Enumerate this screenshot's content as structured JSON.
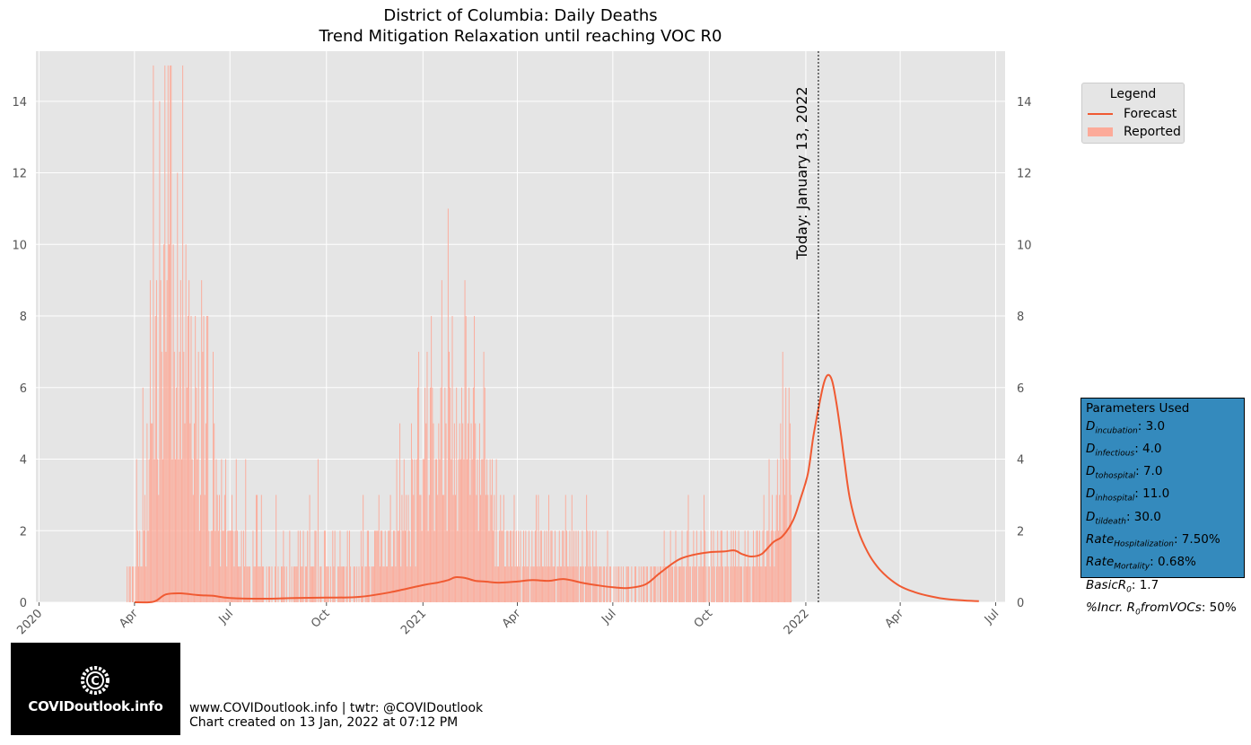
{
  "header": {
    "title": "District of Columbia: Daily Deaths",
    "subtitle": "Trend Mitigation Relaxation until reaching VOC R0"
  },
  "today_label": "Today: January 13, 2022",
  "legend": {
    "title": "Legend",
    "forecast_label": "Forecast",
    "reported_label": "Reported"
  },
  "parameters": {
    "title": "Parameters Used",
    "items": [
      {
        "name": "D",
        "sub": "incubation",
        "value": "3.0"
      },
      {
        "name": "D",
        "sub": "infectious",
        "value": "4.0"
      },
      {
        "name": "D",
        "sub": "tohospital",
        "value": "7.0"
      },
      {
        "name": "D",
        "sub": "inhospital",
        "value": "11.0"
      },
      {
        "name": "D",
        "sub": "tildeath",
        "value": "30.0"
      },
      {
        "name": "Rate",
        "sub": "Hospitalization",
        "value": "7.50%"
      },
      {
        "name": "Rate",
        "sub": "Mortality",
        "value": "0.68%"
      },
      {
        "name": "BasicR",
        "sub": "0",
        "value": "1.7"
      },
      {
        "name": "%Incr. R",
        "sub": "0",
        "name2": "fromVOCs",
        "value": "50%"
      }
    ]
  },
  "logo": {
    "text": "COVIDoutlook.info"
  },
  "footer": {
    "line1": "www.COVIDoutlook.info | twtr: @COVIDoutlook",
    "line2": "Chart created on 13 Jan, 2022 at 07:12 PM"
  },
  "colors": {
    "plot_bg": "#e5e5e5",
    "forecast": "#f05a32",
    "reported": "#fcaa99",
    "params_bg": "#348abd"
  },
  "chart_data": {
    "type": "bar",
    "x_axis": {
      "start": "2019-12-29",
      "end": "2022-07-10",
      "ticks": [
        {
          "date": "2020-01-01",
          "label": "2020"
        },
        {
          "date": "2020-04-01",
          "label": "Apr"
        },
        {
          "date": "2020-07-01",
          "label": "Jul"
        },
        {
          "date": "2020-10-01",
          "label": "Oct"
        },
        {
          "date": "2021-01-01",
          "label": "2021"
        },
        {
          "date": "2021-04-01",
          "label": "Apr"
        },
        {
          "date": "2021-07-01",
          "label": "Jul"
        },
        {
          "date": "2021-10-01",
          "label": "Oct"
        },
        {
          "date": "2022-01-01",
          "label": "2022"
        },
        {
          "date": "2022-04-01",
          "label": "Apr"
        },
        {
          "date": "2022-07-01",
          "label": "Jul"
        }
      ]
    },
    "ylim": [
      0,
      15.4
    ],
    "y_ticks": [
      0,
      2,
      4,
      6,
      8,
      10,
      12,
      14
    ],
    "grid": true,
    "today": "2022-01-13",
    "reported": {
      "name": "Reported",
      "start": "2020-03-25",
      "values": [
        1,
        0,
        1,
        1,
        0,
        1,
        1,
        0,
        1,
        4,
        2,
        1,
        2,
        1,
        1,
        6,
        2,
        3,
        1,
        5,
        2,
        4,
        9,
        5,
        5,
        15,
        4,
        8,
        9,
        4,
        3,
        14,
        9,
        7,
        4,
        10,
        15,
        7,
        9,
        15,
        10,
        15,
        15,
        4,
        10,
        7,
        4,
        6,
        12,
        4,
        7,
        9,
        4,
        15,
        7,
        5,
        10,
        6,
        8,
        9,
        5,
        8,
        4,
        3,
        5,
        8,
        6,
        4,
        7,
        2,
        3,
        9,
        7,
        8,
        3,
        5,
        8,
        8,
        2,
        1,
        2,
        2,
        7,
        5,
        2,
        4,
        3,
        2,
        3,
        1,
        4,
        2,
        2,
        3,
        4,
        1,
        2,
        2,
        2,
        2,
        3,
        2,
        1,
        2,
        4,
        2,
        1,
        1,
        1,
        2,
        0,
        2,
        1,
        4,
        1,
        1,
        1,
        1,
        0,
        0,
        2,
        1,
        1,
        3,
        3,
        1,
        1,
        1,
        3,
        1,
        1,
        0,
        0,
        1,
        0,
        1,
        1,
        0,
        1,
        0,
        0,
        1,
        3,
        0,
        1,
        0,
        0,
        1,
        1,
        2,
        1,
        0,
        1,
        0,
        0,
        2,
        0,
        1,
        0,
        1,
        1,
        1,
        1,
        2,
        0,
        2,
        1,
        1,
        2,
        0,
        1,
        1,
        2,
        0,
        3,
        1,
        1,
        1,
        1,
        2,
        2,
        0,
        4,
        0,
        1,
        1,
        0,
        0,
        2,
        2,
        1,
        1,
        1,
        0,
        1,
        0,
        2,
        1,
        2,
        0,
        0,
        1,
        1,
        2,
        1,
        1,
        1,
        1,
        0,
        1,
        2,
        0,
        2,
        1,
        0,
        0,
        1,
        1,
        0,
        1,
        0,
        1,
        0,
        2,
        1,
        3,
        0,
        1,
        1,
        2,
        2,
        1,
        0,
        1,
        1,
        1,
        2,
        2,
        2,
        2,
        3,
        1,
        2,
        2,
        1,
        1,
        2,
        1,
        1,
        2,
        2,
        3,
        1,
        1,
        2,
        2,
        1,
        4,
        2,
        2,
        5,
        1,
        3,
        2,
        4,
        2,
        3,
        1,
        3,
        2,
        1,
        5,
        4,
        3,
        4,
        1,
        4,
        6,
        7,
        3,
        3,
        2,
        4,
        4,
        6,
        5,
        7,
        2,
        3,
        6,
        8,
        6,
        5,
        2,
        4,
        4,
        3,
        5,
        4,
        6,
        9,
        3,
        3,
        6,
        5,
        2,
        11,
        7,
        6,
        4,
        8,
        3,
        5,
        3,
        6,
        2,
        4,
        5,
        4,
        6,
        5,
        4,
        9,
        8,
        4,
        5,
        6,
        3,
        5,
        4,
        6,
        8,
        5,
        3,
        4,
        2,
        5,
        3,
        4,
        4,
        7,
        6,
        3,
        4,
        3,
        2,
        4,
        3,
        4,
        2,
        3,
        1,
        4,
        1,
        1,
        2,
        3,
        2,
        2,
        3,
        1,
        1,
        2,
        2,
        1,
        2,
        2,
        1,
        2,
        3,
        1,
        2,
        1,
        2,
        1,
        2,
        0,
        1,
        2,
        1,
        2,
        1,
        1,
        2,
        0,
        1,
        2,
        1,
        1,
        2,
        3,
        1,
        3,
        1,
        2,
        2,
        1,
        1,
        2,
        1,
        2,
        1,
        3,
        1,
        2,
        2,
        1,
        1,
        2,
        0,
        1,
        1,
        2,
        1,
        1,
        2,
        2,
        1,
        3,
        2,
        1,
        1,
        2,
        1,
        3,
        1,
        2,
        1,
        2,
        1,
        2,
        0,
        1,
        1,
        2,
        1,
        0,
        1,
        3,
        2,
        1,
        2,
        1,
        0,
        2,
        1,
        1,
        2,
        1,
        0,
        1,
        1,
        1,
        0,
        1,
        1,
        0,
        1,
        2,
        0,
        1,
        1,
        0,
        0,
        1,
        0,
        1,
        0,
        1,
        1,
        0,
        1,
        0,
        1,
        0,
        0,
        1,
        1,
        1,
        0,
        0,
        1,
        0,
        0,
        1,
        1,
        0,
        0,
        1,
        0,
        1,
        0,
        1,
        1,
        0,
        1,
        1,
        0,
        0,
        1,
        1,
        0,
        1,
        1,
        1,
        0,
        1,
        0,
        1,
        1,
        0,
        1,
        2,
        1,
        1,
        0,
        1,
        1,
        2,
        1,
        1,
        0,
        1,
        2,
        1,
        0,
        1,
        1,
        1,
        2,
        1,
        1,
        0,
        1,
        2,
        3,
        1,
        1,
        0,
        1,
        2,
        1,
        1,
        2,
        0,
        1,
        1,
        2,
        1,
        1,
        3,
        2,
        1,
        0,
        1,
        1,
        0,
        2,
        1,
        2,
        1,
        0,
        1,
        2,
        1,
        1,
        2,
        2,
        1,
        0,
        1,
        1,
        2,
        1,
        0,
        1,
        2,
        1,
        2,
        1,
        2,
        1,
        1,
        2,
        1,
        1,
        1,
        0,
        1,
        2,
        1,
        1,
        2,
        1,
        1,
        0,
        1,
        2,
        1,
        1,
        2,
        2,
        1,
        2,
        1,
        1,
        2,
        3,
        1,
        1,
        2,
        2,
        4,
        1,
        2,
        3,
        2,
        1,
        2,
        3,
        4,
        2,
        3,
        5,
        2,
        7,
        4,
        3,
        6,
        4,
        2,
        6,
        5,
        3
      ]
    },
    "forecast": {
      "name": "Forecast",
      "x": [
        "2020-04-01",
        "2020-04-15",
        "2020-04-22",
        "2020-05-01",
        "2020-05-15",
        "2020-06-01",
        "2020-06-15",
        "2020-07-01",
        "2020-08-01",
        "2020-09-01",
        "2020-10-01",
        "2020-11-01",
        "2020-12-01",
        "2021-01-01",
        "2021-01-15",
        "2021-01-25",
        "2021-02-01",
        "2021-02-10",
        "2021-02-20",
        "2021-03-01",
        "2021-03-15",
        "2021-04-01",
        "2021-04-15",
        "2021-05-01",
        "2021-05-15",
        "2021-06-01",
        "2021-06-15",
        "2021-07-01",
        "2021-07-15",
        "2021-08-01",
        "2021-08-15",
        "2021-09-01",
        "2021-09-15",
        "2021-10-01",
        "2021-10-15",
        "2021-10-25",
        "2021-11-01",
        "2021-11-10",
        "2021-11-20",
        "2021-12-01",
        "2021-12-10",
        "2021-12-20",
        "2021-12-27",
        "2022-01-03",
        "2022-01-08",
        "2022-01-13",
        "2022-01-18",
        "2022-01-22",
        "2022-01-26",
        "2022-01-30",
        "2022-02-03",
        "2022-02-07",
        "2022-02-12",
        "2022-02-20",
        "2022-03-01",
        "2022-03-10",
        "2022-03-20",
        "2022-04-01",
        "2022-04-15",
        "2022-05-01",
        "2022-05-15",
        "2022-06-01",
        "2022-06-15"
      ],
      "y": [
        0.0,
        0.0,
        0.05,
        0.22,
        0.25,
        0.2,
        0.18,
        0.12,
        0.1,
        0.12,
        0.13,
        0.15,
        0.28,
        0.48,
        0.55,
        0.62,
        0.7,
        0.68,
        0.6,
        0.58,
        0.55,
        0.58,
        0.62,
        0.6,
        0.65,
        0.55,
        0.48,
        0.42,
        0.4,
        0.5,
        0.82,
        1.18,
        1.32,
        1.4,
        1.42,
        1.45,
        1.35,
        1.28,
        1.35,
        1.68,
        1.85,
        2.3,
        2.9,
        3.6,
        4.6,
        5.4,
        6.1,
        6.35,
        6.2,
        5.6,
        4.8,
        3.9,
        2.9,
        2.0,
        1.4,
        1.0,
        0.7,
        0.45,
        0.28,
        0.16,
        0.09,
        0.05,
        0.03
      ]
    }
  }
}
